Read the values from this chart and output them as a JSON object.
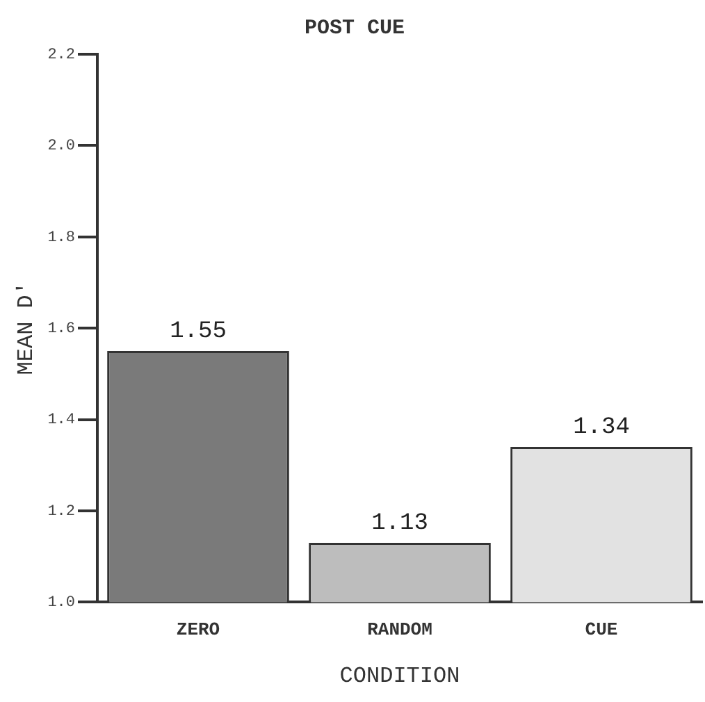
{
  "chart_data": {
    "type": "bar",
    "title": "POST CUE",
    "xlabel": "CONDITION",
    "ylabel": "MEAN D′",
    "categories": [
      "ZERO",
      "RANDOM",
      "CUE"
    ],
    "values": [
      1.55,
      1.13,
      1.34
    ],
    "colors": [
      "#7a7a7a",
      "#bdbdbd",
      "#e2e2e2"
    ],
    "ylim": [
      1.0,
      2.2
    ],
    "yticks": [
      {
        "value": 1.0,
        "label": "1.0"
      },
      {
        "value": 1.2,
        "label": "1.2"
      },
      {
        "value": 1.4,
        "label": "1.4"
      },
      {
        "value": 1.6,
        "label": "1.6"
      },
      {
        "value": 1.8,
        "label": "1.8"
      },
      {
        "value": 2.0,
        "label": "2.0"
      },
      {
        "value": 2.2,
        "label": "2.2"
      }
    ],
    "grid": false,
    "legend": false,
    "data_labels": true
  }
}
